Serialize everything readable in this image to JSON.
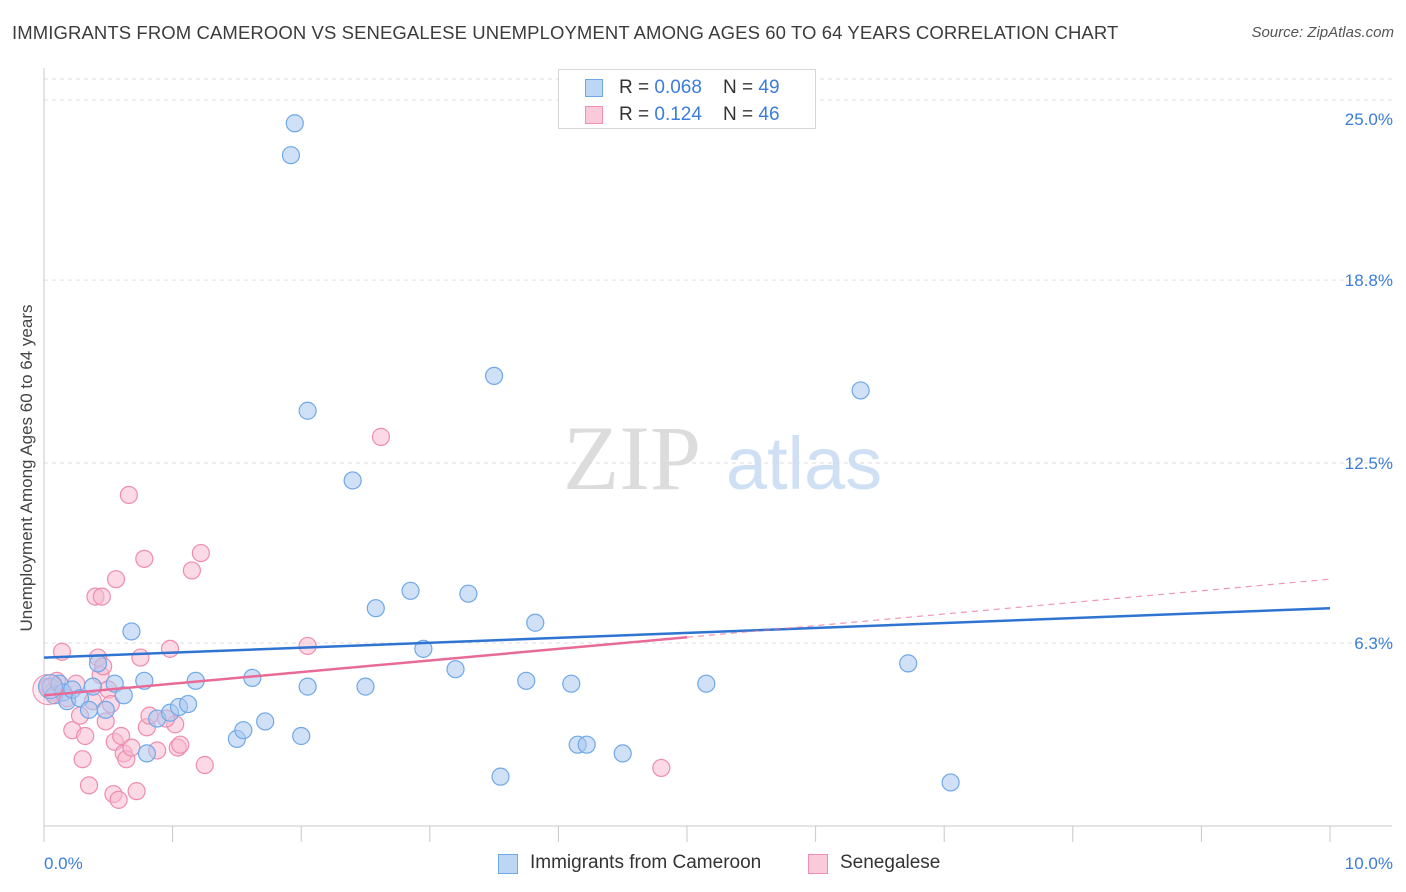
{
  "header": {
    "title": "IMMIGRANTS FROM CAMEROON VS SENEGALESE UNEMPLOYMENT AMONG AGES 60 TO 64 YEARS CORRELATION CHART",
    "source": "Source: ZipAtlas.com"
  },
  "watermark": {
    "zip": "ZIP",
    "atlas": "atlas"
  },
  "legend": {
    "rows": [
      {
        "r_label": "R = ",
        "r_value": "0.068",
        "n_label": "N = ",
        "n_value": "49",
        "color": "#6fa8e8"
      },
      {
        "r_label": "R = ",
        "r_value": "0.124",
        "n_label": "N = ",
        "n_value": "46",
        "color": "#f08db0"
      }
    ]
  },
  "bottom_legend": [
    {
      "label": "Immigrants from Cameroon",
      "color": "#6fa8e8"
    },
    {
      "label": "Senegalese",
      "color": "#f08db0"
    }
  ],
  "colors": {
    "blue_fill": "#a9c9f0",
    "blue_stroke": "#6fa8e8",
    "blue_line": "#2f74d0",
    "pink_fill": "#f7b9cf",
    "pink_stroke": "#ef8cb0",
    "pink_line": "#e86b97",
    "axis_label": "#3b7dd8",
    "grid": "#dedede"
  },
  "chart_data": {
    "type": "scatter",
    "title": "IMMIGRANTS FROM CAMEROON VS SENEGALESE UNEMPLOYMENT AMONG AGES 60 TO 64 YEARS CORRELATION CHART",
    "xlabel": "",
    "ylabel": "Unemployment Among Ages 60 to 64 years",
    "xlim": [
      0,
      10
    ],
    "ylim": [
      0,
      26
    ],
    "x_tick_labels": [
      {
        "value": 0,
        "label": "0.0%"
      },
      {
        "value": 10,
        "label": "10.0%"
      }
    ],
    "y_tick_labels": [
      {
        "value": 6.3,
        "label": "6.3%"
      },
      {
        "value": 12.5,
        "label": "12.5%"
      },
      {
        "value": 18.8,
        "label": "18.8%"
      },
      {
        "value": 25.0,
        "label": "25.0%"
      }
    ],
    "series": [
      {
        "name": "Immigrants from Cameroon",
        "R": 0.068,
        "N": 49,
        "trend": {
          "x0": 0,
          "y0": 5.8,
          "x1": 10,
          "y1": 7.5,
          "style": "solid"
        },
        "points": [
          [
            0.05,
            4.8
          ],
          [
            0.08,
            4.5
          ],
          [
            0.12,
            4.9
          ],
          [
            0.15,
            4.6
          ],
          [
            0.18,
            4.3
          ],
          [
            0.22,
            4.7
          ],
          [
            0.28,
            4.4
          ],
          [
            0.35,
            4.0
          ],
          [
            0.38,
            4.8
          ],
          [
            0.42,
            5.6
          ],
          [
            0.48,
            4.0
          ],
          [
            0.55,
            4.9
          ],
          [
            0.62,
            4.5
          ],
          [
            0.68,
            6.7
          ],
          [
            0.78,
            5.0
          ],
          [
            0.88,
            3.7
          ],
          [
            0.98,
            3.9
          ],
          [
            1.05,
            4.1
          ],
          [
            1.12,
            4.2
          ],
          [
            1.18,
            5.0
          ],
          [
            1.5,
            3.0
          ],
          [
            1.55,
            3.3
          ],
          [
            1.62,
            5.1
          ],
          [
            1.72,
            3.6
          ],
          [
            2.0,
            3.1
          ],
          [
            2.05,
            4.8
          ],
          [
            2.5,
            4.8
          ],
          [
            2.58,
            7.5
          ],
          [
            2.85,
            8.1
          ],
          [
            2.95,
            6.1
          ],
          [
            3.2,
            5.4
          ],
          [
            3.3,
            8.0
          ],
          [
            3.55,
            1.7
          ],
          [
            3.75,
            5.0
          ],
          [
            3.82,
            7.0
          ],
          [
            4.1,
            4.9
          ],
          [
            4.15,
            2.8
          ],
          [
            4.22,
            2.8
          ],
          [
            4.5,
            2.5
          ],
          [
            5.15,
            4.9
          ],
          [
            6.72,
            5.6
          ],
          [
            7.05,
            1.5
          ],
          [
            1.95,
            24.2
          ],
          [
            1.92,
            23.1
          ],
          [
            2.05,
            14.3
          ],
          [
            2.4,
            11.9
          ],
          [
            3.5,
            15.5
          ],
          [
            6.35,
            15.0
          ],
          [
            0.8,
            2.5
          ]
        ]
      },
      {
        "name": "Senegalese",
        "R": 0.124,
        "N": 46,
        "trend": {
          "x0": 0,
          "y0": 4.5,
          "x1": 5.0,
          "y1": 6.5,
          "x2": 10,
          "y2": 8.5,
          "style": "solid-then-dashed"
        },
        "points": [
          [
            0.03,
            4.8
          ],
          [
            0.06,
            4.6
          ],
          [
            0.1,
            5.0
          ],
          [
            0.14,
            6.0
          ],
          [
            0.18,
            4.4
          ],
          [
            0.22,
            3.3
          ],
          [
            0.25,
            4.9
          ],
          [
            0.28,
            3.8
          ],
          [
            0.3,
            2.3
          ],
          [
            0.32,
            3.1
          ],
          [
            0.35,
            1.4
          ],
          [
            0.38,
            4.3
          ],
          [
            0.4,
            7.9
          ],
          [
            0.42,
            5.8
          ],
          [
            0.44,
            5.2
          ],
          [
            0.46,
            5.5
          ],
          [
            0.48,
            3.6
          ],
          [
            0.5,
            4.7
          ],
          [
            0.52,
            4.2
          ],
          [
            0.54,
            1.1
          ],
          [
            0.55,
            2.9
          ],
          [
            0.56,
            8.5
          ],
          [
            0.58,
            0.9
          ],
          [
            0.6,
            3.1
          ],
          [
            0.62,
            2.5
          ],
          [
            0.64,
            2.3
          ],
          [
            0.66,
            11.4
          ],
          [
            0.68,
            2.7
          ],
          [
            0.72,
            1.2
          ],
          [
            0.75,
            5.8
          ],
          [
            0.78,
            9.2
          ],
          [
            0.8,
            3.4
          ],
          [
            0.82,
            3.8
          ],
          [
            0.88,
            2.6
          ],
          [
            1.02,
            3.5
          ],
          [
            1.04,
            2.7
          ],
          [
            1.06,
            2.8
          ],
          [
            0.98,
            6.1
          ],
          [
            1.15,
            8.8
          ],
          [
            1.22,
            9.4
          ],
          [
            1.25,
            2.1
          ],
          [
            2.05,
            6.2
          ],
          [
            2.62,
            13.4
          ],
          [
            4.8,
            2.0
          ],
          [
            0.45,
            7.9
          ],
          [
            0.95,
            3.7
          ]
        ]
      }
    ]
  }
}
